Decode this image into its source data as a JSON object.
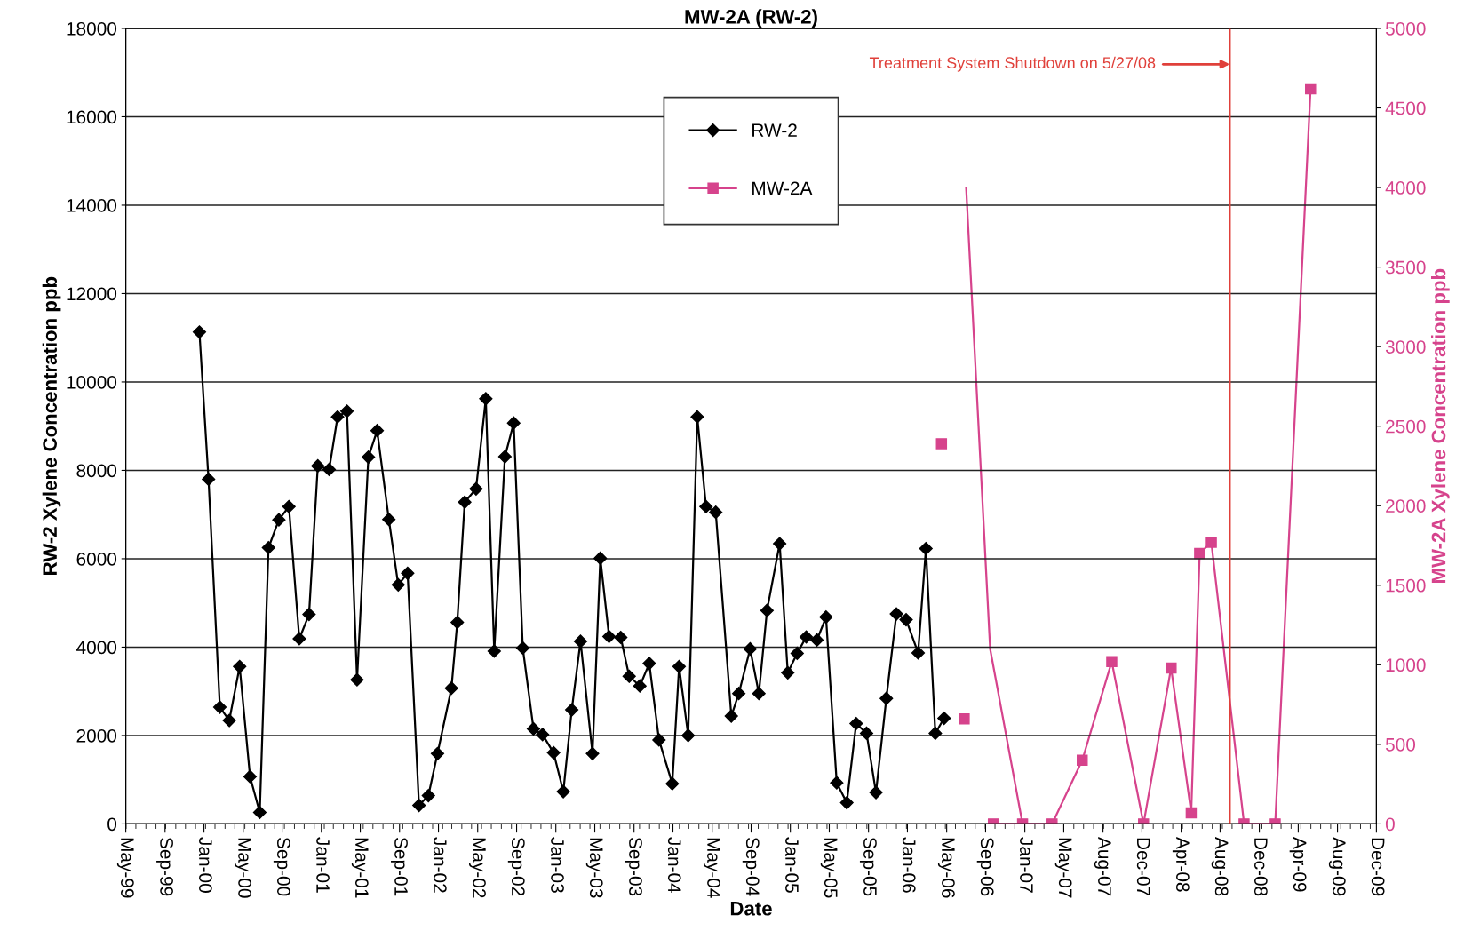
{
  "chart_data": {
    "type": "line",
    "title": "MW-2A (RW-2)",
    "xlabel": "Date",
    "ylabel": "RW-2 Xylene Concentration ppb",
    "y2label": "MW-2A Xylene Concentration ppb",
    "xlim": [
      "1999-05-31",
      "2009-12-20"
    ],
    "xticks": [
      {
        "value": "1999-05-31",
        "label": "May-99"
      },
      {
        "value": "1999-09-29",
        "label": "Sep-99"
      },
      {
        "value": "2000-01-27",
        "label": "Jan-00"
      },
      {
        "value": "2000-05-27",
        "label": "May-00"
      },
      {
        "value": "2000-09-24",
        "label": "Sep-00"
      },
      {
        "value": "2001-01-23",
        "label": "Jan-01"
      },
      {
        "value": "2001-05-23",
        "label": "May-01"
      },
      {
        "value": "2001-09-21",
        "label": "Sep-01"
      },
      {
        "value": "2002-01-19",
        "label": "Jan-02"
      },
      {
        "value": "2002-05-20",
        "label": "May-02"
      },
      {
        "value": "2002-09-17",
        "label": "Sep-02"
      },
      {
        "value": "2003-01-16",
        "label": "Jan-03"
      },
      {
        "value": "2003-05-16",
        "label": "May-03"
      },
      {
        "value": "2003-09-14",
        "label": "Sep-03"
      },
      {
        "value": "2004-01-12",
        "label": "Jan-04"
      },
      {
        "value": "2004-05-12",
        "label": "May-04"
      },
      {
        "value": "2004-09-09",
        "label": "Sep-04"
      },
      {
        "value": "2005-01-08",
        "label": "Jan-05"
      },
      {
        "value": "2005-05-08",
        "label": "May-05"
      },
      {
        "value": "2005-09-06",
        "label": "Sep-05"
      },
      {
        "value": "2006-01-04",
        "label": "Jan-06"
      },
      {
        "value": "2006-05-05",
        "label": "May-06"
      },
      {
        "value": "2006-09-02",
        "label": "Sep-06"
      },
      {
        "value": "2007-01-01",
        "label": "Jan-07"
      },
      {
        "value": "2007-05-01",
        "label": "May-07"
      },
      {
        "value": "2007-08-30",
        "label": "Aug-07"
      },
      {
        "value": "2007-12-28",
        "label": "Dec-07"
      },
      {
        "value": "2008-04-27",
        "label": "Apr-08"
      },
      {
        "value": "2008-08-25",
        "label": "Aug-08"
      },
      {
        "value": "2008-12-24",
        "label": "Dec-08"
      },
      {
        "value": "2009-04-23",
        "label": "Apr-09"
      },
      {
        "value": "2009-08-22",
        "label": "Aug-09"
      },
      {
        "value": "2009-12-20",
        "label": "Dec-09"
      }
    ],
    "ylim": [
      0,
      18000
    ],
    "yticks": [
      0,
      2000,
      4000,
      6000,
      8000,
      10000,
      12000,
      14000,
      16000,
      18000
    ],
    "y2lim": [
      0,
      5000
    ],
    "y2ticks": [
      0,
      500,
      1000,
      1500,
      2000,
      2500,
      3000,
      3500,
      4000,
      4500,
      5000
    ],
    "grid": "y",
    "legend": "top",
    "series": [
      {
        "name": "RW-2",
        "color": "#000000",
        "marker": "diamond",
        "x": [
          "2000-01-13",
          "2000-02-10",
          "2000-03-16",
          "2000-04-14",
          "2000-05-16",
          "2000-06-17",
          "2000-07-17",
          "2000-08-13",
          "2000-09-14",
          "2000-10-15",
          "2000-11-16",
          "2000-12-16",
          "2001-01-12",
          "2001-02-16",
          "2001-03-14",
          "2001-04-12",
          "2001-05-13",
          "2001-06-17",
          "2001-07-14",
          "2001-08-19",
          "2001-09-17",
          "2001-10-16",
          "2001-11-20",
          "2001-12-19",
          "2002-01-16",
          "2002-02-28",
          "2002-03-18",
          "2002-04-10",
          "2002-05-15",
          "2002-06-14",
          "2002-07-10",
          "2002-08-12",
          "2002-09-08",
          "2002-10-06",
          "2002-11-08",
          "2002-12-06",
          "2003-01-09",
          "2003-02-08",
          "2003-03-06",
          "2003-04-02",
          "2003-05-09",
          "2003-06-02",
          "2003-06-29",
          "2003-08-04",
          "2003-08-30",
          "2003-10-02",
          "2003-10-31",
          "2003-11-30",
          "2004-01-10",
          "2004-01-31",
          "2004-02-28",
          "2004-03-27",
          "2004-04-23",
          "2004-05-23",
          "2004-07-10",
          "2004-08-02",
          "2004-09-06",
          "2004-10-03",
          "2004-10-28",
          "2004-12-06",
          "2004-12-31",
          "2005-01-29",
          "2005-02-26",
          "2005-03-31",
          "2005-04-28",
          "2005-05-31",
          "2005-07-01",
          "2005-07-30",
          "2005-08-31",
          "2005-09-29",
          "2005-10-31",
          "2005-12-01",
          "2005-12-31",
          "2006-02-06",
          "2006-03-02",
          "2006-03-31",
          "2006-04-27"
        ],
        "values": [
          11130,
          7800,
          2640,
          2340,
          3560,
          1070,
          260,
          6250,
          6880,
          7180,
          4190,
          4740,
          8100,
          8020,
          9210,
          9340,
          3260,
          8300,
          8900,
          6890,
          5410,
          5670,
          420,
          640,
          1590,
          3070,
          4560,
          7280,
          7580,
          9620,
          3910,
          8310,
          9070,
          3980,
          2150,
          2020,
          1610,
          730,
          2580,
          4130,
          1590,
          6010,
          4240,
          4220,
          3340,
          3120,
          3630,
          1900,
          910,
          3560,
          2000,
          9210,
          7180,
          7050,
          2440,
          2950,
          3960,
          2950,
          4830,
          6340,
          3420,
          3860,
          4230,
          4160,
          4680,
          930,
          480,
          2270,
          2050,
          710,
          2840,
          4750,
          4620,
          3870,
          6230,
          2050,
          2390
        ]
      },
      {
        "name": "MW-2A",
        "color": "#d6438c",
        "marker": "square",
        "axis": "y2",
        "x": [
          "2006-04-19",
          "2006-05-20",
          "2006-06-28",
          "2006-08-01",
          "2006-09-26",
          "2006-12-25",
          "2007-03-26",
          "2007-06-27",
          "2007-09-26",
          "2008-01-02",
          "2008-03-27",
          "2008-05-28",
          "2008-06-23",
          "2008-07-29",
          "2008-11-07",
          "2009-02-11",
          "2009-05-31"
        ],
        "values": [
          2390,
          null,
          660,
          null,
          0,
          0,
          0,
          400,
          1020,
          0,
          980,
          70,
          1700,
          1770,
          0,
          0,
          4620
        ]
      },
      {
        "color": "#d6438c",
        "marker": "none",
        "axis": "y2",
        "x": [
          "2006-07-04",
          "2006-09-16",
          "2006-12-25"
        ],
        "values": [
          4000,
          1100,
          0
        ]
      }
    ],
    "ref_lines": [
      {
        "axis": "x",
        "value": "2008-09-24",
        "label": "Treatment System Shutdown on 5/27/08",
        "color": "#e0403a"
      }
    ]
  }
}
